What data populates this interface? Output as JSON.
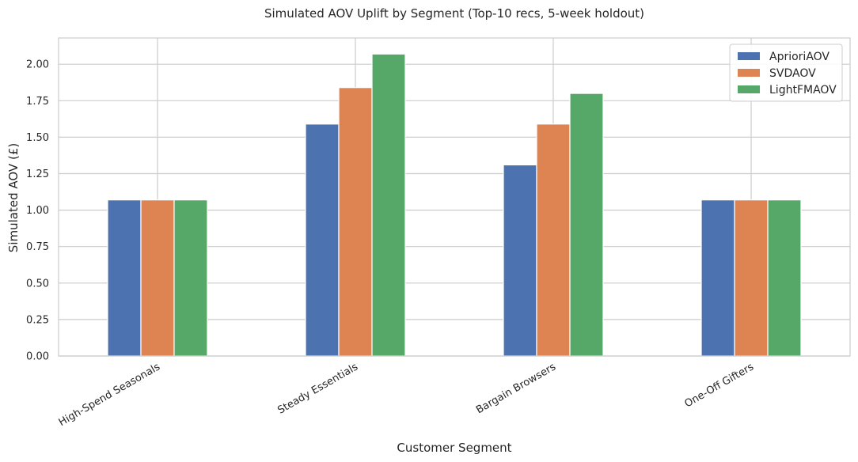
{
  "chart_data": {
    "type": "bar",
    "title": "Simulated AOV Uplift by Segment (Top-10 recs, 5-week holdout)",
    "xlabel": "Customer Segment",
    "ylabel": "Simulated AOV (£)",
    "categories": [
      "High-Spend Seasonals",
      "Steady Essentials",
      "Bargain Browsers",
      "One-Off Gifters"
    ],
    "series": [
      {
        "name": "AprioriAOV",
        "color": "#4c72b0",
        "values": [
          1.07,
          1.59,
          1.31,
          1.07
        ]
      },
      {
        "name": "SVDAOV",
        "color": "#dd8452",
        "values": [
          1.07,
          1.84,
          1.59,
          1.07
        ]
      },
      {
        "name": "LightFMAOV",
        "color": "#55a868",
        "values": [
          1.07,
          2.07,
          1.8,
          1.07
        ]
      }
    ],
    "ylim": [
      0,
      2.18
    ],
    "yticks": [
      "0.00",
      "0.25",
      "0.50",
      "0.75",
      "1.00",
      "1.25",
      "1.50",
      "1.75",
      "2.00"
    ],
    "grid": true,
    "legend": "top-right"
  }
}
